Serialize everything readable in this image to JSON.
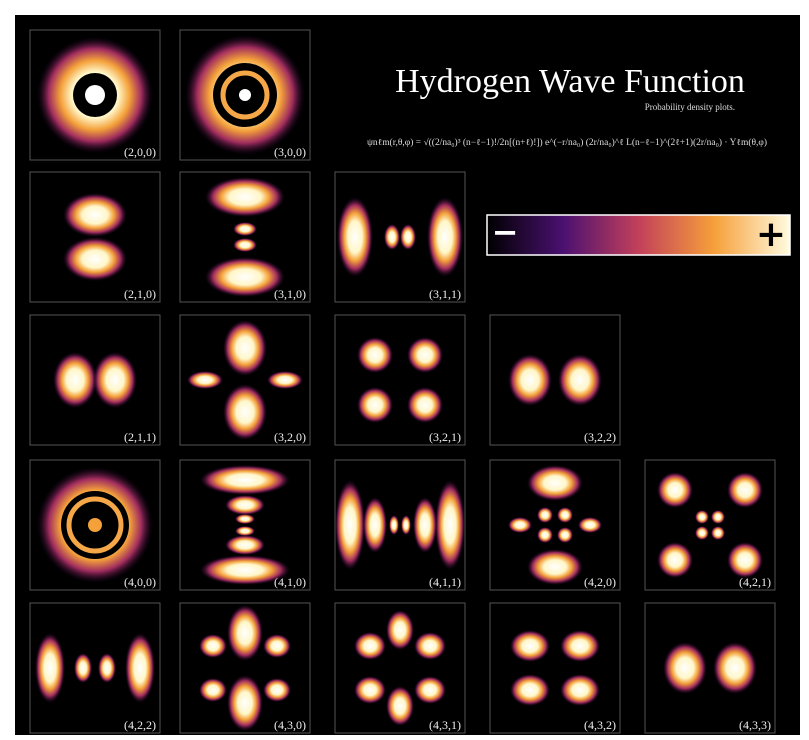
{
  "header": {
    "title": "Hydrogen Wave Function",
    "subtitle": "Probability density plots.",
    "formula": "ψnℓm(r,θ,φ) = √((2/na₀)³ (n−ℓ−1)!/2n[(n+ℓ)!]) e^(−r/na₀) (2r/na₀)^ℓ L(n−ℓ−1)^(2ℓ+1)(2r/na₀) · Yℓm(θ,φ)"
  },
  "legend": {
    "minus": "−",
    "plus": "+"
  },
  "tiles": [
    {
      "label": "(2,0,0)"
    },
    {
      "label": "(3,0,0)"
    },
    {
      "label": "(2,1,0)"
    },
    {
      "label": "(3,1,0)"
    },
    {
      "label": "(3,1,1)"
    },
    {
      "label": "(2,1,1)"
    },
    {
      "label": "(3,2,0)"
    },
    {
      "label": "(3,2,1)"
    },
    {
      "label": "(3,2,2)"
    },
    {
      "label": "(4,0,0)"
    },
    {
      "label": "(4,1,0)"
    },
    {
      "label": "(4,1,1)"
    },
    {
      "label": "(4,2,0)"
    },
    {
      "label": "(4,2,1)"
    },
    {
      "label": "(4,2,2)"
    },
    {
      "label": "(4,3,0)"
    },
    {
      "label": "(4,3,1)"
    },
    {
      "label": "(4,3,2)"
    },
    {
      "label": "(4,3,3)"
    }
  ]
}
